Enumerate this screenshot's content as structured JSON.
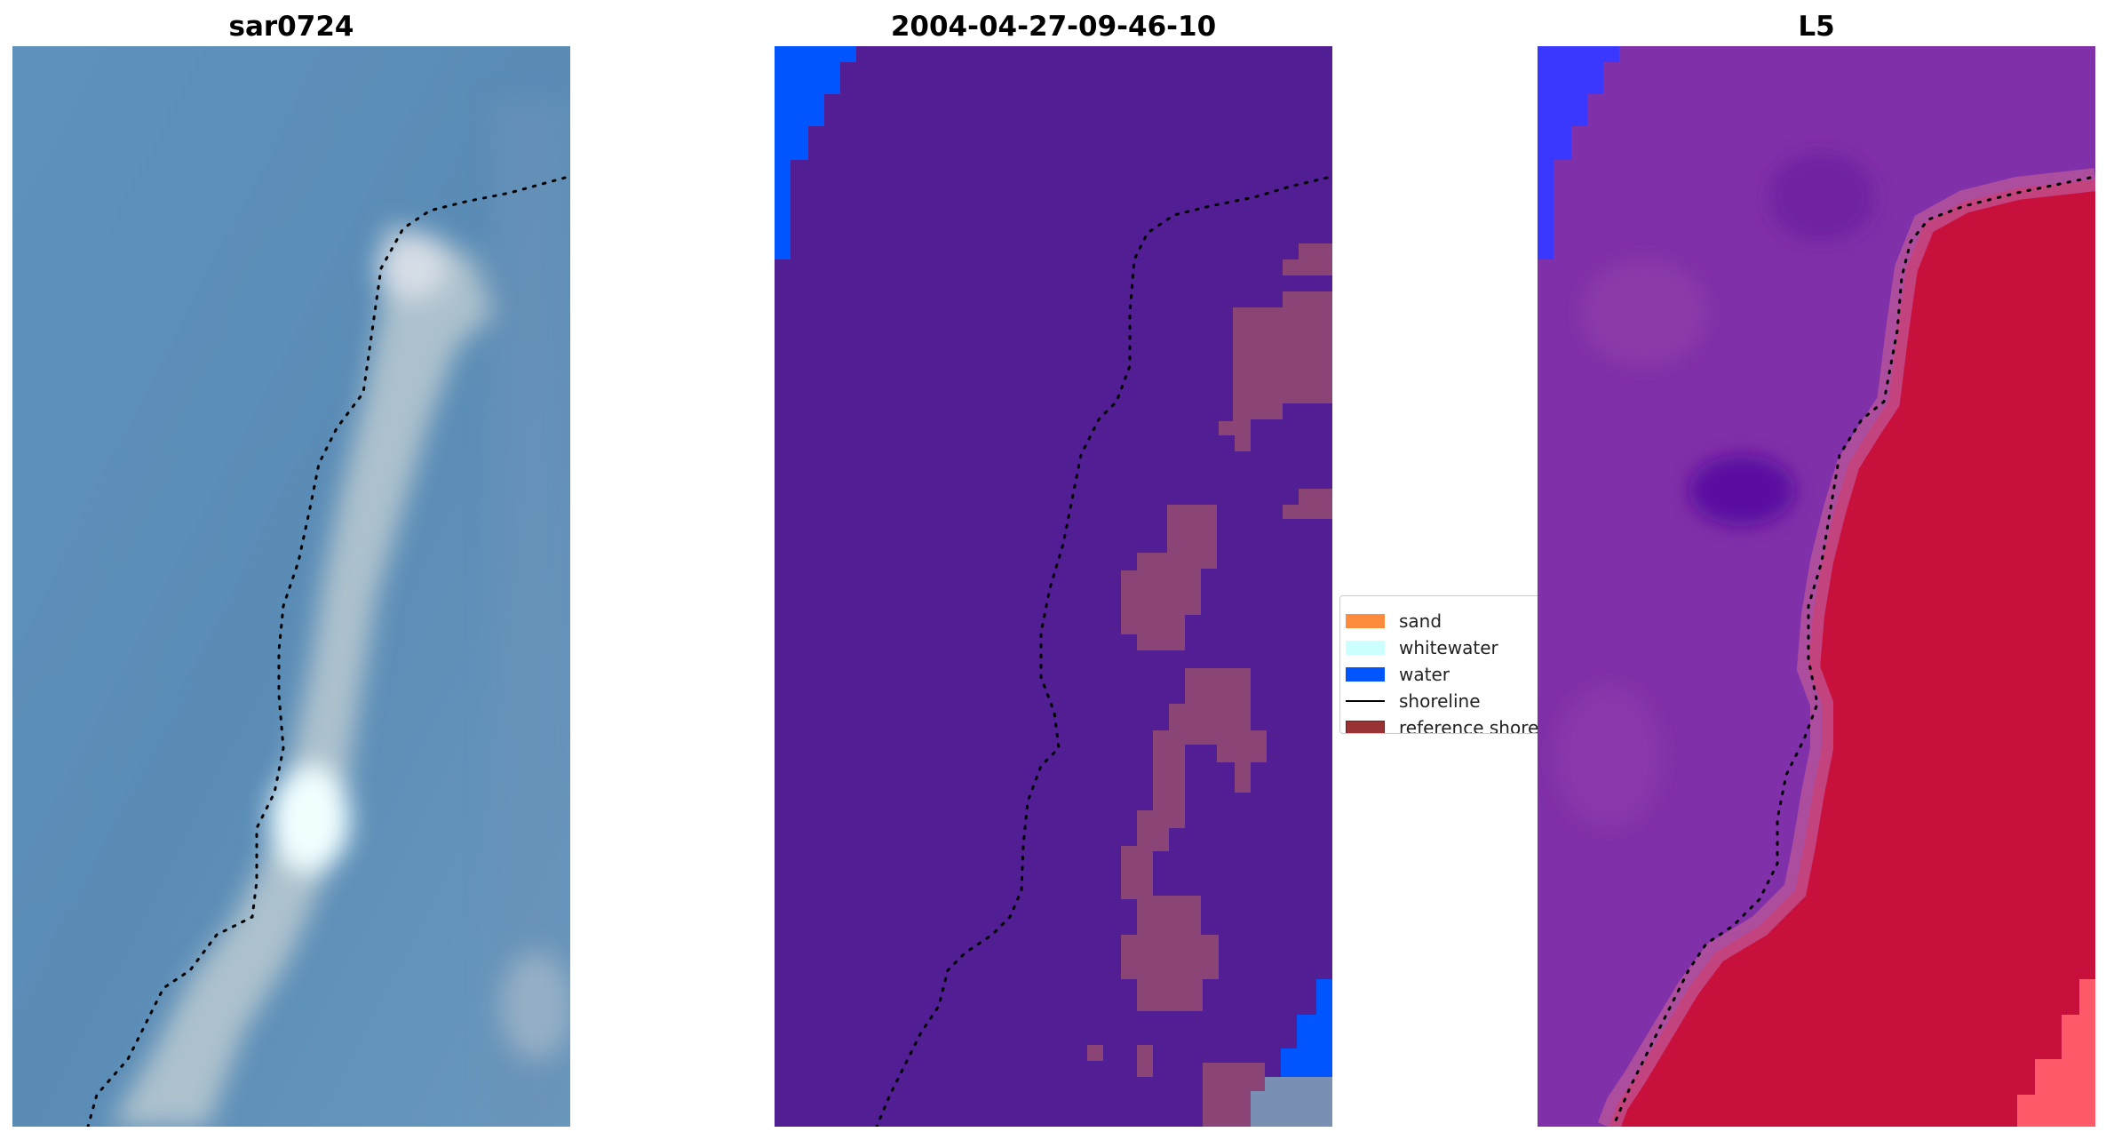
{
  "panels": [
    {
      "title": "sar0724"
    },
    {
      "title": "2004-04-27-09-46-10"
    },
    {
      "title": "L5"
    }
  ],
  "legend": {
    "items": [
      {
        "label": "sand",
        "color": "#ff8c3c"
      },
      {
        "label": "whitewater",
        "color": "#ccffff"
      },
      {
        "label": "water",
        "color": "#0055ff"
      },
      {
        "label": "shoreline",
        "color": "#000000"
      },
      {
        "label": "reference shoreline",
        "color": "#993333"
      }
    ]
  },
  "colors": {
    "rgb_water": "#5a8fba",
    "rgb_sand": "#b9c8cf",
    "class_background": "#521e94",
    "class_water": "#0055ff",
    "class_patch": "#8a4476",
    "mndwi_low": "#8030a8",
    "mndwi_high": "#c8103c"
  }
}
